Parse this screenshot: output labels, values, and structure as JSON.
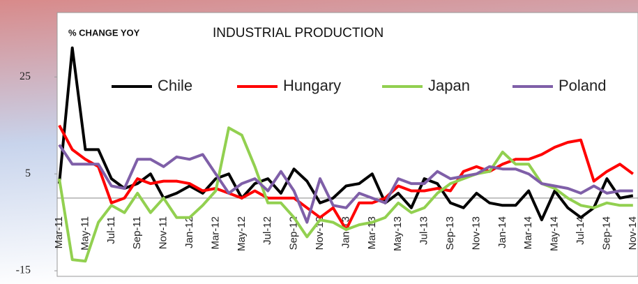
{
  "chart_data": {
    "type": "line",
    "title": "INDUSTRIAL PRODUCTION",
    "subtitle": "% CHANGE YOY",
    "categories": [
      "Mar-11",
      null,
      "May-11",
      null,
      "Jul-11",
      null,
      "Sep-11",
      null,
      "Nov-11",
      null,
      "Jan-12",
      null,
      "Mar-12",
      null,
      "May-12",
      null,
      "Jul-12",
      null,
      "Sep-12",
      null,
      "Nov-12",
      null,
      "Jan-13",
      null,
      "Mar-13",
      null,
      "May-13",
      null,
      "Jul-13",
      null,
      "Sep-13",
      null,
      "Nov-13",
      null,
      "Jan-14",
      null,
      "Mar-14",
      null,
      "May-14",
      null,
      "Jul-14",
      null,
      "Sep-14",
      null,
      "Nov-14"
    ],
    "series": [
      {
        "name": "Chile",
        "color": "#000000",
        "values": [
          3,
          31,
          10,
          10,
          4,
          2,
          3,
          5,
          0,
          1,
          2.5,
          1,
          4,
          5,
          0,
          3,
          4,
          1,
          6,
          3.5,
          -1,
          0,
          2.5,
          3,
          5,
          -1,
          1,
          -2,
          4,
          3,
          -1,
          -2,
          1,
          -1,
          -1.5,
          -1.5,
          1.5,
          -4.5,
          1.5,
          -2,
          -4,
          -2,
          4,
          0,
          0.5
        ]
      },
      {
        "name": "Hungary",
        "color": "#ff0000",
        "values": [
          15,
          10,
          8,
          6.5,
          -1,
          0,
          4,
          3,
          3.5,
          3.5,
          3,
          1.5,
          2,
          1,
          0,
          1.5,
          0,
          0,
          0,
          -2,
          -4,
          -2,
          -6.5,
          -1,
          -1,
          0,
          2.5,
          1.5,
          1.5,
          2,
          1.5,
          5.5,
          6.5,
          5.5,
          7,
          8,
          8,
          9,
          10.5,
          11.5,
          12,
          3.5,
          5.5,
          7,
          5
        ]
      },
      {
        "name": "Japan",
        "color": "#92d050",
        "values": [
          4,
          -12.7,
          -13,
          -5,
          -1.5,
          -3,
          1,
          -3,
          0,
          -4,
          -4,
          -1.5,
          1.5,
          14.5,
          13,
          6.5,
          -1,
          -1,
          -4,
          -8,
          -4.5,
          -5,
          -6.5,
          -5.5,
          -5,
          -4,
          -1,
          -3,
          -2,
          1,
          3,
          4,
          5,
          5.5,
          9.5,
          7,
          7,
          3,
          2,
          0,
          -1.5,
          -2,
          -1,
          -1.5,
          -1.5
        ]
      },
      {
        "name": "Poland",
        "color": "#7f5fa8",
        "values": [
          11,
          7,
          7,
          7,
          2.5,
          2,
          8,
          8,
          6.5,
          8.5,
          8,
          9,
          5,
          1,
          3,
          4,
          1.5,
          5.5,
          1.5,
          -5,
          4,
          -1.5,
          -2,
          1,
          0,
          -1,
          4,
          3,
          3,
          5.5,
          4,
          4.5,
          5,
          6.5,
          6,
          6,
          5,
          3,
          2.5,
          2,
          1,
          2.5,
          1,
          1.5,
          1.5
        ]
      }
    ],
    "ylim": [
      -16,
      38
    ],
    "yticks": [
      -15,
      5,
      25
    ],
    "legend": "top",
    "grid": false
  }
}
